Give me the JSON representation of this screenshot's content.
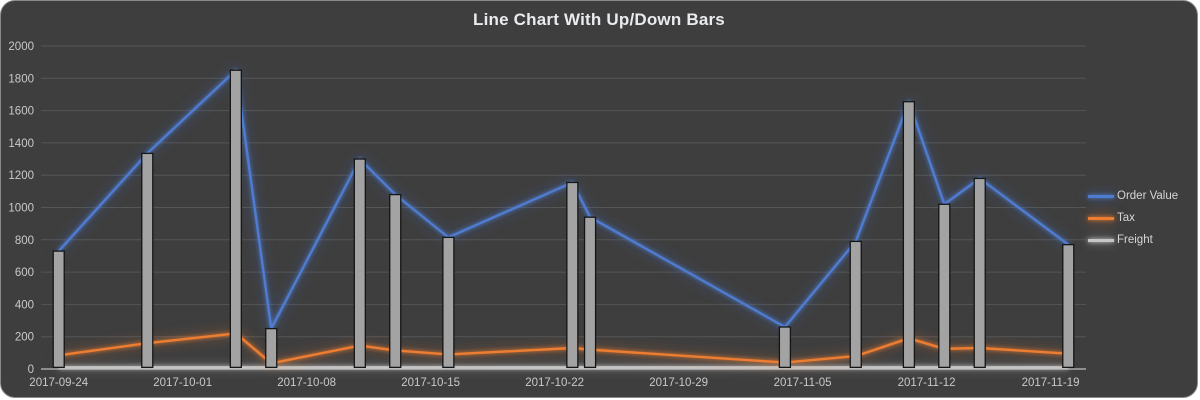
{
  "chart": {
    "title": "Line Chart With Up/Down Bars",
    "background": "#3e3e3e",
    "border_color": "#8a8a8a",
    "title_color": "#e9ebee",
    "axis_text_color": "#c9c9c9",
    "gridline_color": "#565656",
    "axis_line_color": "#a8a8a8",
    "bar_fill": "#a3a3a3",
    "bar_border": "#151515",
    "legend": [
      {
        "label": "Order Value",
        "color": "#4f7cd0"
      },
      {
        "label": "Tax",
        "color": "#ed7d31"
      },
      {
        "label": "Freight",
        "color": "#c6c6c6"
      }
    ]
  },
  "chart_data": {
    "type": "line",
    "title": "Line Chart With Up/Down Bars",
    "legend_position": "right",
    "grid": true,
    "up_down_bars": {
      "enabled": true,
      "from_series": "Freight",
      "to_series": "Order Value"
    },
    "x_axis": {
      "type": "date",
      "range": [
        "2017-09-23",
        "2017-11-21"
      ],
      "tick_labels": [
        "2017-09-24",
        "2017-10-01",
        "2017-10-08",
        "2017-10-15",
        "2017-10-22",
        "2017-10-29",
        "2017-11-05",
        "2017-11-12",
        "2017-11-19"
      ]
    },
    "y_axis": {
      "min": 0,
      "max": 2000,
      "tick_step": 200
    },
    "series_names": [
      "Order Value",
      "Tax",
      "Freight"
    ],
    "points": [
      {
        "date": "2017-09-24",
        "order_value": 730,
        "tax": 85,
        "freight": 10
      },
      {
        "date": "2017-09-29",
        "order_value": 1335,
        "tax": 160,
        "freight": 10
      },
      {
        "date": "2017-10-04",
        "order_value": 1850,
        "tax": 220,
        "freight": 10
      },
      {
        "date": "2017-10-06",
        "order_value": 250,
        "tax": 35,
        "freight": 10
      },
      {
        "date": "2017-10-11",
        "order_value": 1300,
        "tax": 145,
        "freight": 10
      },
      {
        "date": "2017-10-13",
        "order_value": 1080,
        "tax": 115,
        "freight": 10
      },
      {
        "date": "2017-10-16",
        "order_value": 815,
        "tax": 90,
        "freight": 10
      },
      {
        "date": "2017-10-23",
        "order_value": 1155,
        "tax": 130,
        "freight": 10
      },
      {
        "date": "2017-10-24",
        "order_value": 940,
        "tax": 120,
        "freight": 10
      },
      {
        "date": "2017-11-04",
        "order_value": 260,
        "tax": 40,
        "freight": 10
      },
      {
        "date": "2017-11-08",
        "order_value": 790,
        "tax": 80,
        "freight": 10
      },
      {
        "date": "2017-11-11",
        "order_value": 1655,
        "tax": 190,
        "freight": 10
      },
      {
        "date": "2017-11-13",
        "order_value": 1020,
        "tax": 125,
        "freight": 10
      },
      {
        "date": "2017-11-15",
        "order_value": 1180,
        "tax": 130,
        "freight": 10
      },
      {
        "date": "2017-11-20",
        "order_value": 770,
        "tax": 95,
        "freight": 10
      }
    ]
  }
}
